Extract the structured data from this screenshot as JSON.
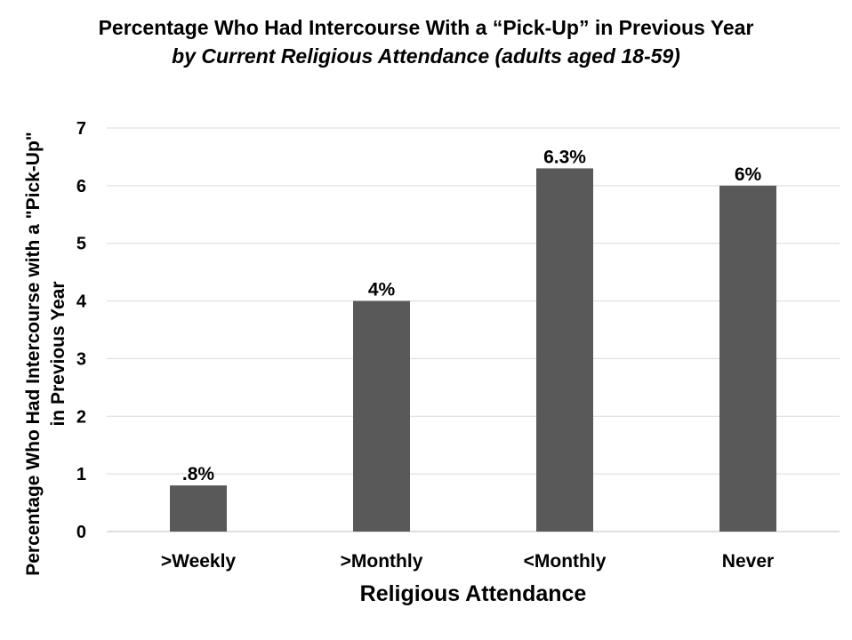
{
  "chart_data": {
    "type": "bar",
    "title": "Percentage Who Had Intercourse With a “Pick-Up” in Previous Year",
    "subtitle": "by Current Religious Attendance (adults aged 18-59)",
    "xlabel": "Religious Attendance",
    "ylabel_line1": "Percentage Who Had Intercourse with a \"Pick-Up\"",
    "ylabel_line2": "in Previous Year",
    "categories": [
      ">Weekly",
      ">Monthly",
      "<Monthly",
      "Never"
    ],
    "values": [
      0.8,
      4,
      6.3,
      6
    ],
    "data_labels": [
      ".8%",
      "4%",
      "6.3%",
      "6%"
    ],
    "ylim": [
      0,
      7
    ],
    "yticks": [
      0,
      1,
      2,
      3,
      4,
      5,
      6,
      7
    ],
    "grid": true,
    "legend": "none",
    "bar_color": "#595959",
    "grid_color": "#d9d9d9"
  }
}
